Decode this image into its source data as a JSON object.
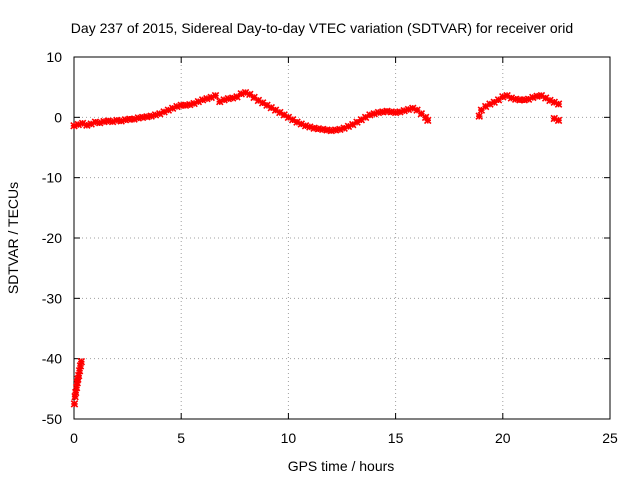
{
  "chart_data": {
    "type": "scatter",
    "title": "Day 237 of 2015, Sidereal Day-to-day VTEC variation (SDTVAR) for receiver orid",
    "xlabel": "GPS time / hours",
    "ylabel": "SDTVAR / TECUs",
    "xlim": [
      0,
      25
    ],
    "ylim": [
      -50,
      10
    ],
    "x_ticks": [
      0,
      5,
      10,
      15,
      20,
      25
    ],
    "x_tick_labels": [
      "0",
      "5",
      "10",
      "15",
      "20",
      "25"
    ],
    "y_ticks": [
      10,
      0,
      -10,
      -20,
      -30,
      -40,
      -50
    ],
    "y_tick_labels": [
      "10",
      "0",
      "-10",
      "-20",
      "-30",
      "-40",
      "-50"
    ],
    "grid": true,
    "marker_color": "#ff0000",
    "series": [
      {
        "name": "SDTVAR",
        "points": [
          [
            0.02,
            -47.5
          ],
          [
            0.05,
            -46.3
          ],
          [
            0.08,
            -45.6
          ],
          [
            0.12,
            -44.8
          ],
          [
            0.15,
            -44.0
          ],
          [
            0.18,
            -43.4
          ],
          [
            0.22,
            -42.8
          ],
          [
            0.26,
            -42.0
          ],
          [
            0.3,
            -41.2
          ],
          [
            0.34,
            -40.5
          ],
          [
            0.0,
            -1.4
          ],
          [
            0.2,
            -1.2
          ],
          [
            0.4,
            -1.0
          ],
          [
            0.6,
            -1.3
          ],
          [
            0.8,
            -1.1
          ],
          [
            1.0,
            -0.8
          ],
          [
            1.2,
            -0.9
          ],
          [
            1.4,
            -0.7
          ],
          [
            1.6,
            -0.6
          ],
          [
            1.8,
            -0.7
          ],
          [
            2.0,
            -0.5
          ],
          [
            2.2,
            -0.6
          ],
          [
            2.4,
            -0.4
          ],
          [
            2.6,
            -0.3
          ],
          [
            2.8,
            -0.3
          ],
          [
            3.0,
            -0.1
          ],
          [
            3.2,
            0.0
          ],
          [
            3.4,
            0.1
          ],
          [
            3.6,
            0.2
          ],
          [
            3.8,
            0.4
          ],
          [
            4.0,
            0.6
          ],
          [
            4.2,
            0.9
          ],
          [
            4.4,
            1.2
          ],
          [
            4.6,
            1.5
          ],
          [
            4.8,
            1.8
          ],
          [
            5.0,
            2.0
          ],
          [
            5.2,
            2.0
          ],
          [
            5.4,
            2.1
          ],
          [
            5.6,
            2.3
          ],
          [
            5.8,
            2.6
          ],
          [
            6.0,
            2.9
          ],
          [
            6.2,
            3.1
          ],
          [
            6.4,
            3.3
          ],
          [
            6.6,
            3.6
          ],
          [
            6.8,
            2.6
          ],
          [
            7.0,
            2.9
          ],
          [
            7.2,
            3.1
          ],
          [
            7.4,
            3.2
          ],
          [
            7.6,
            3.4
          ],
          [
            7.8,
            3.9
          ],
          [
            8.0,
            4.1
          ],
          [
            8.2,
            3.8
          ],
          [
            8.4,
            3.3
          ],
          [
            8.6,
            2.8
          ],
          [
            8.8,
            2.4
          ],
          [
            9.0,
            2.0
          ],
          [
            9.2,
            1.6
          ],
          [
            9.4,
            1.2
          ],
          [
            9.6,
            0.8
          ],
          [
            9.8,
            0.4
          ],
          [
            10.0,
            0.0
          ],
          [
            10.2,
            -0.4
          ],
          [
            10.4,
            -0.8
          ],
          [
            10.6,
            -1.1
          ],
          [
            10.8,
            -1.4
          ],
          [
            11.0,
            -1.6
          ],
          [
            11.2,
            -1.8
          ],
          [
            11.4,
            -1.9
          ],
          [
            11.6,
            -2.0
          ],
          [
            11.8,
            -2.1
          ],
          [
            12.0,
            -2.2
          ],
          [
            12.2,
            -2.1
          ],
          [
            12.4,
            -2.0
          ],
          [
            12.6,
            -1.8
          ],
          [
            12.8,
            -1.5
          ],
          [
            13.0,
            -1.2
          ],
          [
            13.2,
            -0.8
          ],
          [
            13.4,
            -0.4
          ],
          [
            13.6,
            0.0
          ],
          [
            13.8,
            0.4
          ],
          [
            14.0,
            0.6
          ],
          [
            14.2,
            0.8
          ],
          [
            14.4,
            0.9
          ],
          [
            14.6,
            1.0
          ],
          [
            14.8,
            0.9
          ],
          [
            15.0,
            0.8
          ],
          [
            15.2,
            0.9
          ],
          [
            15.4,
            1.1
          ],
          [
            15.6,
            1.3
          ],
          [
            15.8,
            1.5
          ],
          [
            16.0,
            1.2
          ],
          [
            16.2,
            0.6
          ],
          [
            16.4,
            0.0
          ],
          [
            16.5,
            -0.5
          ],
          [
            18.9,
            0.2
          ],
          [
            19.0,
            1.2
          ],
          [
            19.2,
            1.8
          ],
          [
            19.4,
            2.2
          ],
          [
            19.6,
            2.5
          ],
          [
            19.8,
            2.9
          ],
          [
            20.0,
            3.4
          ],
          [
            20.2,
            3.6
          ],
          [
            20.4,
            3.2
          ],
          [
            20.6,
            3.0
          ],
          [
            20.8,
            2.9
          ],
          [
            21.0,
            2.9
          ],
          [
            21.2,
            3.0
          ],
          [
            21.4,
            3.3
          ],
          [
            21.6,
            3.5
          ],
          [
            21.8,
            3.6
          ],
          [
            22.0,
            3.2
          ],
          [
            22.2,
            2.8
          ],
          [
            22.4,
            2.5
          ],
          [
            22.6,
            2.2
          ],
          [
            22.4,
            -0.2
          ],
          [
            22.6,
            -0.5
          ]
        ]
      }
    ]
  }
}
